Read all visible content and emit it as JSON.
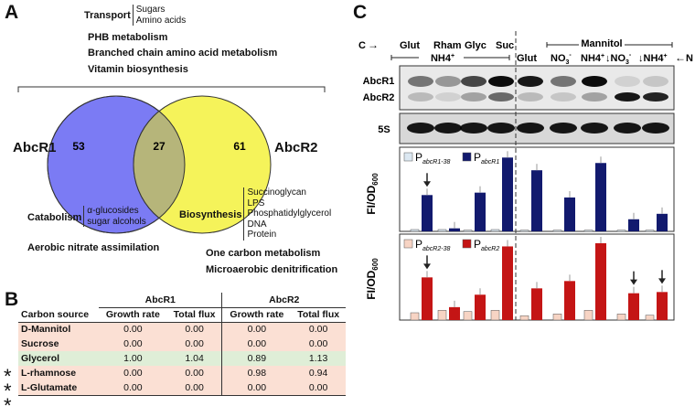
{
  "panels": {
    "a": "A",
    "b": "B",
    "c": "C"
  },
  "panelA": {
    "transport_label": "Transport",
    "transport_items": [
      "Sugars",
      "Amino acids"
    ],
    "top_items": [
      "PHB metabolism",
      "Branched chain amino acid metabolism",
      "Vitamin biosynthesis"
    ],
    "venn": {
      "left_label": "AbcR1",
      "right_label": "AbcR2",
      "left_count": "53",
      "overlap_count": "27",
      "right_count": "61",
      "left_color": "#7b7bf4",
      "right_color": "#f5f35a",
      "overlap_color": "#b6b57a"
    },
    "catabolism_label": "Catabolism",
    "catabolism_items": [
      "α-glucosides",
      "sugar alcohols"
    ],
    "aerobic": "Aerobic nitrate assimilation",
    "biosynthesis_label": "Biosynthesis",
    "biosynthesis_items": [
      "Succinoglycan",
      "LPS",
      "Phosphatidylglycerol",
      "DNA",
      "Protein"
    ],
    "bottom_items": [
      "One carbon metabolism",
      "Microaerobic denitrification"
    ]
  },
  "panelB": {
    "carbon_source_header": "Carbon source",
    "group1": "AbcR1",
    "group2": "AbcR2",
    "col_growth": "Growth rate",
    "col_flux": "Total flux",
    "rows": [
      {
        "source": "D-Mannitol",
        "star": "",
        "r1_growth": "0.00",
        "r1_flux": "0.00",
        "r2_growth": "0.00",
        "r2_flux": "0.00",
        "color": "#fbe0d4"
      },
      {
        "source": "Sucrose",
        "star": "",
        "r1_growth": "0.00",
        "r1_flux": "0.00",
        "r2_growth": "0.00",
        "r2_flux": "0.00",
        "color": "#fbe0d4"
      },
      {
        "source": "Glycerol",
        "star": "*",
        "r1_growth": "1.00",
        "r1_flux": "1.04",
        "r2_growth": "0.89",
        "r2_flux": "1.13",
        "color": "#dfeed7"
      },
      {
        "source": "L-rhamnose",
        "star": "*",
        "r1_growth": "0.00",
        "r1_flux": "0.00",
        "r2_growth": "0.98",
        "r2_flux": "0.94",
        "color": "#fbe0d4"
      },
      {
        "source": "L-Glutamate",
        "star": "*",
        "r1_growth": "0.00",
        "r1_flux": "0.00",
        "r2_growth": "0.00",
        "r2_flux": "0.00",
        "color": "#fbe0d4"
      }
    ]
  },
  "panelC": {
    "c_arrow": "C",
    "n_arrow": "N",
    "carbon_labels": [
      "Glut",
      "Rham",
      "Glyc",
      "Suc"
    ],
    "mannitol": "Mannitol",
    "nh4_span": "NH4",
    "nh4_sup": "+",
    "nitrogen_labels": [
      {
        "main": "Glut",
        "sub": "",
        "sup": ""
      },
      {
        "main": "NO",
        "sub": "3",
        "sup": "-"
      },
      {
        "main": "NH4",
        "sub": "",
        "sup": "+"
      },
      {
        "main": "↓NO",
        "sub": "3",
        "sup": "-"
      },
      {
        "main": "↓NH4",
        "sub": "",
        "sup": "+"
      }
    ],
    "blot_labels": [
      "AbcR1",
      "AbcR2",
      "5S"
    ],
    "ylabel_main": "FI/OD",
    "ylabel_sub": "600",
    "legend1": [
      {
        "main": "P",
        "sub": "abcR1-38",
        "color": "#dce8f2"
      },
      {
        "main": "P",
        "sub": "abcR1",
        "color": "#121a6e"
      }
    ],
    "legend2": [
      {
        "main": "P",
        "sub": "abcR2-38",
        "color": "#f7d4c4"
      },
      {
        "main": "P",
        "sub": "abcR2",
        "color": "#c41515"
      }
    ],
    "chart_data": [
      {
        "type": "bar",
        "ylabel": "FI/OD600",
        "ylim": [
          0,
          130
        ],
        "categories": [
          "Glut",
          "Rham",
          "Glyc",
          "Suc",
          "Glut",
          "NO3-",
          "NH4+",
          "↓NO3-",
          "↓NH4+"
        ],
        "series": [
          {
            "name": "PabcR1-38",
            "values": [
              3,
              3,
              2,
              3,
              2,
              2,
              2,
              2,
              2
            ]
          },
          {
            "name": "PabcR1",
            "values": [
              60,
              5,
              64,
              122,
              101,
              56,
              113,
              20,
              29
            ]
          }
        ],
        "arrows_at": [
          0
        ]
      },
      {
        "type": "bar",
        "ylabel": "FI/OD600",
        "ylim": [
          0,
          33
        ],
        "categories": [
          "Glut",
          "Rham",
          "Glyc",
          "Suc",
          "Glut",
          "NO3-",
          "NH4+",
          "↓NO3-",
          "↓NH4+"
        ],
        "series": [
          {
            "name": "PabcR2-38",
            "values": [
              3,
              4,
              3.5,
              4,
              1.8,
              2.5,
              4,
              2.5,
              2
            ]
          },
          {
            "name": "PabcR2",
            "values": [
              17.5,
              5.3,
              10.4,
              30.2,
              13,
              16,
              31.5,
              11,
              11.5
            ]
          }
        ],
        "arrows_at": [
          0,
          7,
          8
        ]
      }
    ]
  }
}
